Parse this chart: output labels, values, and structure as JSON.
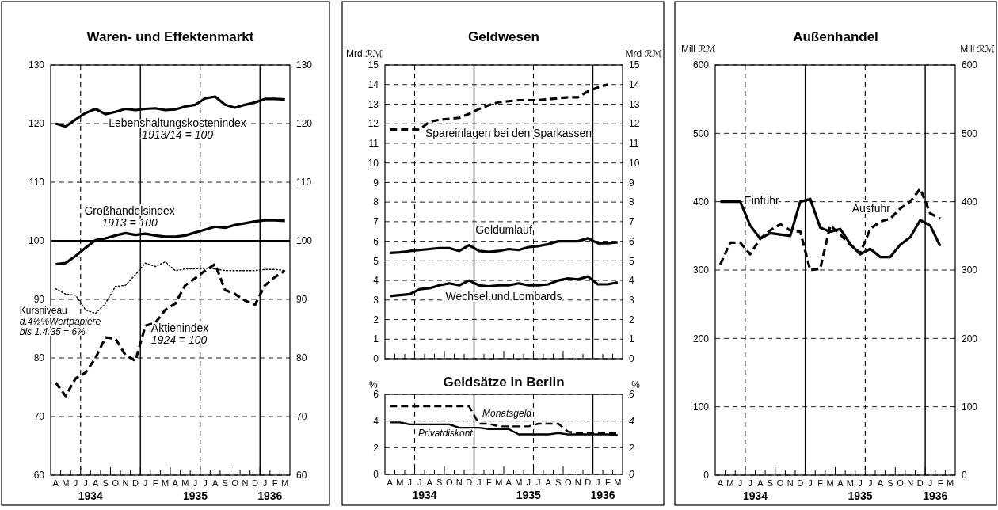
{
  "chart_data": [
    {
      "type": "line",
      "title": "Waren- und Effektenmarkt",
      "categories": [
        "A",
        "M",
        "J",
        "J",
        "A",
        "S",
        "O",
        "N",
        "D",
        "J",
        "F",
        "M",
        "A",
        "M",
        "J",
        "J",
        "A",
        "S",
        "O",
        "N",
        "D",
        "J",
        "F",
        "M"
      ],
      "annotations": [
        "1934",
        "1935",
        "1936"
      ],
      "ylim": [
        60,
        130
      ],
      "yticks": [
        60,
        70,
        80,
        90,
        100,
        110,
        120,
        130
      ],
      "y2lim": [
        60,
        130
      ],
      "y2ticks": [
        60,
        70,
        80,
        90,
        100,
        110,
        120,
        130
      ],
      "grid": true,
      "ref_lines": [
        {
          "axis": "y",
          "value": 100,
          "line_style": "solid"
        }
      ],
      "series": [
        {
          "name": "Lebenshaltungskostenindex 1913/14 = 100",
          "color": "#000000",
          "line_style": "solid",
          "values": [
            120,
            119.5,
            120.7,
            121.8,
            122.5,
            121.6,
            122.0,
            122.5,
            122.3,
            122.5,
            122.6,
            122.3,
            122.4,
            122.9,
            123.2,
            124.3,
            124.6,
            123.2,
            122.7,
            123.2,
            123.6,
            124.2,
            124.2,
            124.1
          ]
        },
        {
          "name": "Großhandelsindex 1913 = 100",
          "color": "#000000",
          "line_style": "solid",
          "values": [
            96.0,
            96.2,
            97.4,
            98.8,
            100.1,
            100.4,
            100.9,
            101.3,
            101.0,
            101.2,
            100.9,
            100.7,
            100.7,
            100.9,
            101.4,
            101.9,
            102.4,
            102.2,
            102.7,
            103.0,
            103.3,
            103.5,
            103.5,
            103.4
          ]
        },
        {
          "name": "Kursniveau d.4½%Wertpapiere bis 1.4.35 = 6%",
          "color": "#000000",
          "line_style": "dotted",
          "values": [
            91.8,
            90.9,
            90.7,
            88.2,
            87.6,
            89.3,
            92.2,
            92.4,
            94.2,
            96.2,
            95.6,
            96.4,
            94.9,
            95.2,
            95.2,
            95.3,
            95.2,
            94.9,
            94.9,
            94.9,
            94.9,
            95.1,
            95.1,
            94.9
          ]
        },
        {
          "name": "Aktienindex 1924 = 100",
          "color": "#000000",
          "line_style": "dashed",
          "values": [
            75.8,
            73.5,
            76.5,
            77.5,
            80.0,
            83.5,
            83.3,
            80.5,
            79.5,
            85.5,
            86.0,
            88.2,
            89.3,
            92.4,
            93.6,
            94.9,
            96.0,
            91.6,
            90.9,
            89.8,
            89.1,
            92.4,
            93.8,
            94.9
          ]
        }
      ]
    },
    {
      "type": "line",
      "title": "Geldwesen",
      "ylabel": "Mrd ℛℳ",
      "y2label": "Mrd ℛℳ",
      "categories": [
        null,
        null,
        null,
        null,
        null,
        null,
        null,
        null,
        null,
        null,
        null,
        null,
        null,
        null,
        null,
        null,
        null,
        null,
        null,
        null,
        null,
        null,
        null,
        null
      ],
      "tick_labels": "y",
      "ylim": [
        0,
        15
      ],
      "yticks": [
        0,
        1,
        2,
        3,
        4,
        5,
        6,
        7,
        8,
        9,
        10,
        11,
        12,
        13,
        14,
        15
      ],
      "y2lim": [
        0,
        15
      ],
      "y2ticks": [
        0,
        1,
        2,
        3,
        4,
        5,
        6,
        7,
        8,
        9,
        10,
        11,
        12,
        13,
        14,
        15
      ],
      "grid": true,
      "series": [
        {
          "name": "Spareinlagen bei den Sparkassen",
          "color": "#000000",
          "line_style": "dashed",
          "values": [
            11.7,
            11.7,
            11.7,
            11.7,
            12.1,
            12.2,
            12.25,
            12.3,
            12.5,
            12.75,
            12.95,
            13.1,
            13.15,
            13.2,
            13.2,
            13.2,
            13.25,
            13.3,
            13.35,
            13.35,
            13.65,
            13.85,
            14.0,
            null
          ]
        },
        {
          "name": "Geldumlauf",
          "color": "#000000",
          "line_style": "solid",
          "values": [
            5.4,
            5.43,
            5.5,
            5.55,
            5.6,
            5.65,
            5.65,
            5.5,
            5.8,
            5.5,
            5.45,
            5.5,
            5.6,
            5.55,
            5.7,
            5.75,
            5.85,
            6.0,
            6.0,
            6.0,
            6.15,
            5.9,
            5.9,
            5.95
          ]
        },
        {
          "name": "Wechsel und Lombards",
          "color": "#000000",
          "line_style": "solid",
          "values": [
            3.2,
            3.25,
            3.3,
            3.55,
            3.6,
            3.75,
            3.85,
            3.75,
            4.0,
            3.75,
            3.7,
            3.75,
            3.75,
            3.85,
            3.75,
            3.75,
            3.8,
            4.0,
            4.1,
            4.05,
            4.2,
            3.8,
            3.8,
            3.9
          ]
        }
      ]
    },
    {
      "type": "line",
      "title": "Geldsätze in Berlin",
      "ylabel": "%",
      "y2label": "%",
      "categories": [
        "A",
        "M",
        "J",
        "J",
        "A",
        "S",
        "O",
        "N",
        "D",
        "J",
        "F",
        "M",
        "A",
        "M",
        "J",
        "J",
        "A",
        "S",
        "O",
        "N",
        "D",
        "J",
        "F",
        "M"
      ],
      "annotations": [
        "1934",
        "1935",
        "1936"
      ],
      "ylim": [
        0,
        6
      ],
      "yticks": [
        0,
        2,
        4,
        6
      ],
      "y2lim": [
        0,
        6
      ],
      "y2ticks": [
        0,
        2,
        4,
        6
      ],
      "grid": true,
      "series": [
        {
          "name": "Monatsgeld",
          "color": "#000000",
          "line_style": "dashed",
          "values": [
            5.1,
            5.1,
            5.1,
            5.1,
            5.1,
            5.1,
            5.1,
            5.1,
            5.1,
            3.8,
            3.8,
            3.6,
            3.6,
            3.6,
            3.6,
            3.8,
            3.8,
            3.8,
            3.2,
            3.1,
            3.1,
            3.1,
            3.1,
            3.1
          ]
        },
        {
          "name": "Privatdiskont",
          "color": "#000000",
          "line_style": "solid",
          "values": [
            3.9,
            3.9,
            3.75,
            3.75,
            3.75,
            3.75,
            3.75,
            3.5,
            3.5,
            3.5,
            3.4,
            3.4,
            3.4,
            3.0,
            3.0,
            3.0,
            3.0,
            3.1,
            3.0,
            3.0,
            3.0,
            3.0,
            3.0,
            2.95
          ]
        }
      ]
    },
    {
      "type": "line",
      "title": "Außenhandel",
      "ylabel": "Mill ℛℳ",
      "y2label": "Mill ℛℳ",
      "categories": [
        "A",
        "M",
        "J",
        "J",
        "A",
        "S",
        "O",
        "N",
        "D",
        "J",
        "F",
        "M",
        "A",
        "M",
        "J",
        "J",
        "A",
        "S",
        "O",
        "N",
        "D",
        "J",
        "F",
        "M"
      ],
      "annotations": [
        "1934",
        "1935",
        "1936"
      ],
      "ylim": [
        0,
        600
      ],
      "yticks": [
        0,
        100,
        200,
        300,
        400,
        500,
        600
      ],
      "y2lim": [
        0,
        600
      ],
      "y2ticks": [
        0,
        100,
        200,
        300,
        400,
        500,
        600
      ],
      "grid": true,
      "series": [
        {
          "name": "Einfuhr",
          "color": "#000000",
          "line_style": "solid",
          "values": [
            400,
            400,
            400,
            365,
            346,
            354,
            352,
            350,
            400,
            404,
            362,
            356,
            360,
            338,
            323,
            331,
            319,
            319,
            337,
            348,
            373,
            365,
            335,
            null
          ]
        },
        {
          "name": "Ausfuhr",
          "color": "#000000",
          "line_style": "dashed",
          "values": [
            308,
            340,
            340,
            323,
            346,
            358,
            367,
            358,
            356,
            300,
            302,
            365,
            352,
            337,
            325,
            360,
            371,
            375,
            390,
            400,
            419,
            383,
            375,
            null
          ]
        }
      ]
    }
  ]
}
